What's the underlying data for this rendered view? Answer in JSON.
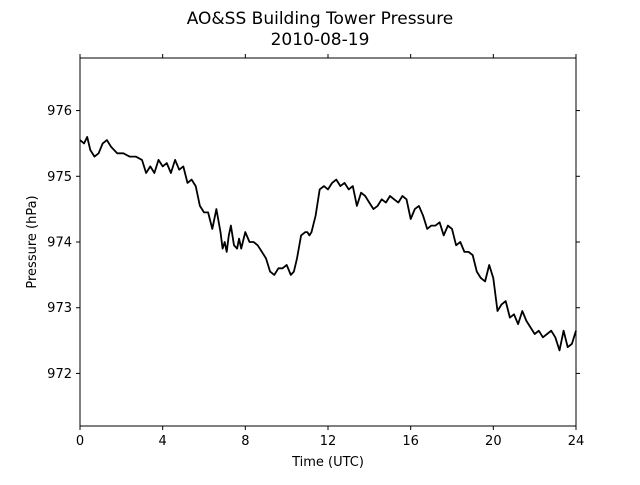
{
  "chart_data": {
    "type": "line",
    "title": "AO&SS Building Tower Pressure",
    "subtitle": "2010-08-19",
    "xlabel": "Time (UTC)",
    "ylabel": "Pressure (hPa)",
    "xlim": [
      0,
      24
    ],
    "ylim": [
      971.2,
      976.8
    ],
    "xticks": [
      0,
      4,
      8,
      12,
      16,
      20,
      24
    ],
    "yticks": [
      972,
      973,
      974,
      975,
      976
    ],
    "grid": false,
    "line_color": "#000000",
    "series": [
      {
        "x": [
          0.0,
          0.2,
          0.35,
          0.5,
          0.7,
          0.9,
          1.1,
          1.3,
          1.5,
          1.8,
          2.1,
          2.4,
          2.7,
          3.0,
          3.2,
          3.4,
          3.6,
          3.8,
          4.0,
          4.2,
          4.4,
          4.6,
          4.8,
          5.0,
          5.2,
          5.4,
          5.6,
          5.8,
          6.0,
          6.2,
          6.4,
          6.6,
          6.8,
          6.9,
          7.0,
          7.1,
          7.2,
          7.3,
          7.45,
          7.6,
          7.7,
          7.8,
          8.0,
          8.2,
          8.4,
          8.6,
          8.8,
          9.0,
          9.2,
          9.4,
          9.6,
          9.8,
          10.0,
          10.2,
          10.35,
          10.5,
          10.7,
          10.9,
          11.0,
          11.1,
          11.2,
          11.4,
          11.6,
          11.8,
          12.0,
          12.2,
          12.4,
          12.6,
          12.8,
          13.0,
          13.2,
          13.4,
          13.6,
          13.8,
          14.0,
          14.2,
          14.4,
          14.6,
          14.8,
          15.0,
          15.2,
          15.4,
          15.6,
          15.8,
          16.0,
          16.2,
          16.4,
          16.6,
          16.8,
          17.0,
          17.2,
          17.4,
          17.6,
          17.8,
          18.0,
          18.2,
          18.4,
          18.6,
          18.8,
          19.0,
          19.2,
          19.4,
          19.6,
          19.8,
          20.0,
          20.2,
          20.4,
          20.6,
          20.8,
          21.0,
          21.2,
          21.4,
          21.6,
          21.8,
          22.0,
          22.2,
          22.4,
          22.6,
          22.8,
          23.0,
          23.2,
          23.4,
          23.6,
          23.8,
          24.0
        ],
        "y": [
          975.55,
          975.5,
          975.6,
          975.4,
          975.3,
          975.35,
          975.5,
          975.55,
          975.45,
          975.35,
          975.35,
          975.3,
          975.3,
          975.25,
          975.05,
          975.15,
          975.05,
          975.25,
          975.15,
          975.2,
          975.05,
          975.25,
          975.1,
          975.15,
          974.9,
          974.95,
          974.85,
          974.55,
          974.45,
          974.45,
          974.2,
          974.5,
          974.15,
          973.9,
          974.0,
          973.85,
          974.1,
          974.25,
          973.95,
          973.9,
          974.05,
          973.9,
          974.15,
          974.0,
          974.0,
          973.95,
          973.85,
          973.75,
          973.55,
          973.5,
          973.6,
          973.6,
          973.65,
          973.5,
          973.55,
          973.75,
          974.1,
          974.15,
          974.15,
          974.1,
          974.15,
          974.4,
          974.8,
          974.85,
          974.8,
          974.9,
          974.95,
          974.85,
          974.9,
          974.8,
          974.85,
          974.55,
          974.75,
          974.7,
          974.6,
          974.5,
          974.55,
          974.65,
          974.6,
          974.7,
          974.65,
          974.6,
          974.7,
          974.65,
          974.35,
          974.5,
          974.55,
          974.4,
          974.2,
          974.25,
          974.25,
          974.3,
          974.1,
          974.25,
          974.2,
          973.95,
          974.0,
          973.85,
          973.85,
          973.8,
          973.55,
          973.45,
          973.4,
          973.65,
          973.45,
          972.95,
          973.05,
          973.1,
          972.85,
          972.9,
          972.75,
          972.95,
          972.8,
          972.7,
          972.6,
          972.65,
          972.55,
          972.6,
          972.65,
          972.55,
          972.35,
          972.65,
          972.4,
          972.45,
          972.65
        ]
      }
    ]
  }
}
